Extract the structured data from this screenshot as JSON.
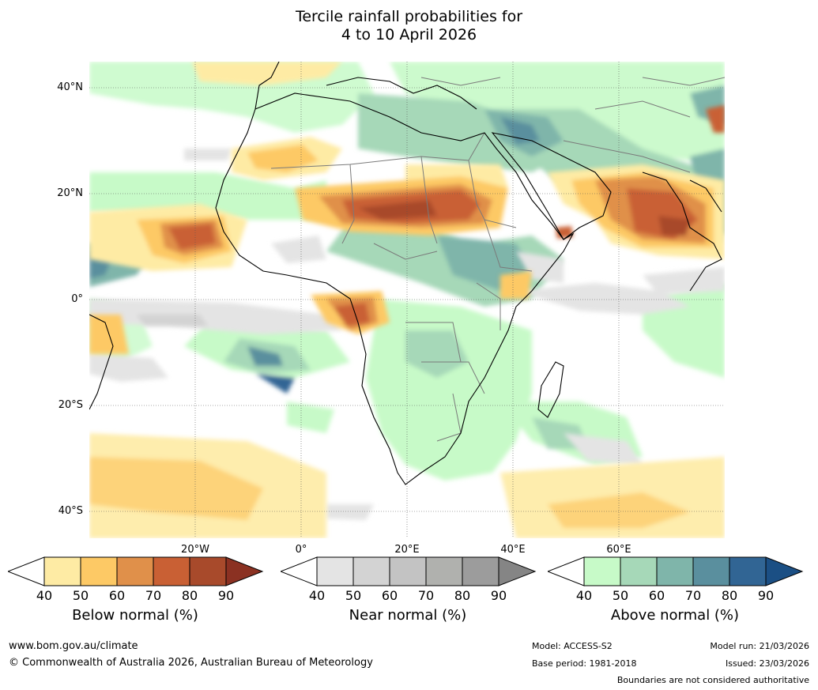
{
  "title": {
    "line1": "Tercile rainfall probabilities for",
    "line2": "4 to 10 April 2026"
  },
  "latitude_labels": [
    "40°N",
    "20°N",
    "0°",
    "20°S",
    "40°S"
  ],
  "longitude_labels": [
    "20°W",
    "0°",
    "20°E",
    "40°E",
    "60°E"
  ],
  "colorbars": {
    "below": {
      "title": "Below normal (%)",
      "ticks": [
        "40",
        "50",
        "60",
        "70",
        "80",
        "90"
      ],
      "colors": [
        "#ffffff",
        "#feeba4",
        "#fdc965",
        "#e0904a",
        "#c96034",
        "#a84a2b",
        "#8b3122"
      ]
    },
    "near": {
      "title": "Near normal (%)",
      "ticks": [
        "40",
        "50",
        "60",
        "70",
        "80",
        "90"
      ],
      "colors": [
        "#ffffff",
        "#e4e4e4",
        "#d3d3d3",
        "#c3c3c3",
        "#b0b1ae",
        "#9c9c9c",
        "#858585"
      ]
    },
    "above": {
      "title": "Above normal (%)",
      "ticks": [
        "40",
        "50",
        "60",
        "70",
        "80",
        "90"
      ],
      "colors": [
        "#ffffff",
        "#c7fac8",
        "#a6d8b8",
        "#7fb5aa",
        "#5a8f9e",
        "#316594",
        "#1b4f84"
      ]
    }
  },
  "footer": {
    "website": "www.bom.gov.au/climate",
    "copyright": "© Commonwealth of Australia 2026, Australian Bureau of Meteorology",
    "model": "Model: ACCESS-S2",
    "base_period": "Base period: 1981-2018",
    "model_run": "Model run: 21/03/2026",
    "issued": "Issued: 23/03/2026",
    "disclaimer": "Boundaries are not considered authoritative"
  }
}
